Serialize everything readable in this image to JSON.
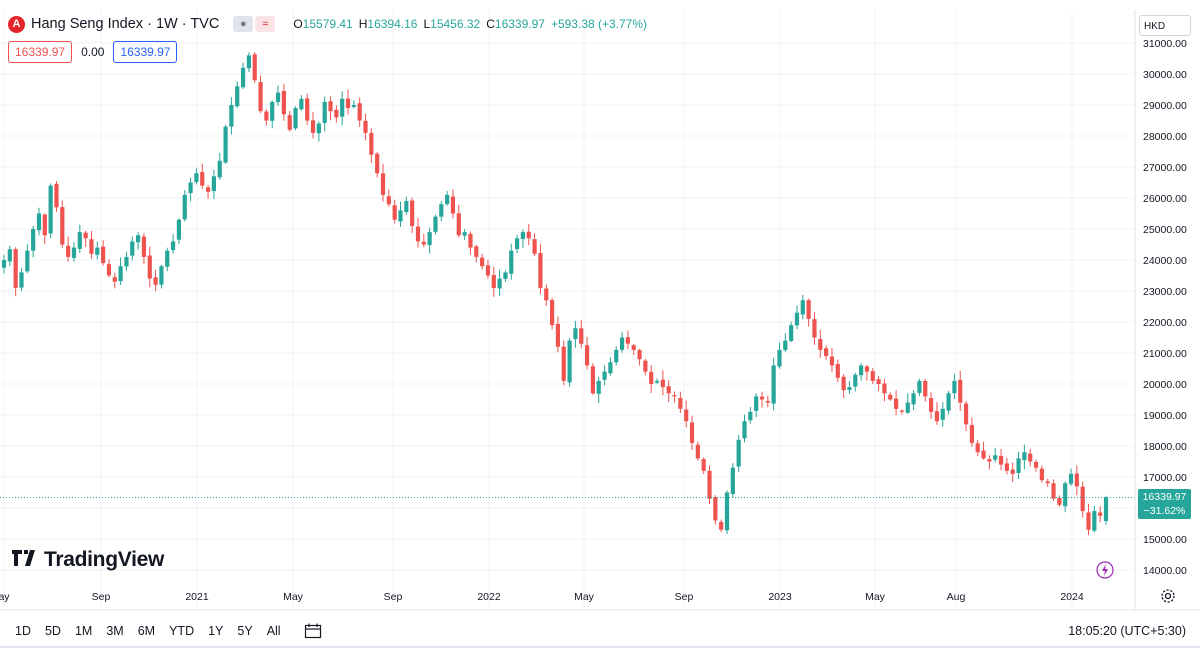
{
  "header": {
    "symbol_icon": "A",
    "title": "Hang Seng Index · 1W · TVC",
    "o_label": "O",
    "o_value": "15579.41",
    "h_label": "H",
    "h_value": "16394.16",
    "l_label": "L",
    "l_value": "15456.32",
    "c_label": "C",
    "c_value": "16339.97",
    "change": "+593.38 (+3.77%)"
  },
  "quote": {
    "bid": "16339.97",
    "spread": "0.00",
    "ask": "16339.97"
  },
  "currency": "HKD",
  "brand": "TradingView",
  "price_label": {
    "price": "16339.97",
    "change_pct": "−31.62%"
  },
  "bottom": {
    "ranges": [
      "1D",
      "5D",
      "1M",
      "3M",
      "6M",
      "YTD",
      "1Y",
      "5Y",
      "All"
    ],
    "clock": "18:05:20 (UTC+5:30)"
  },
  "colors": {
    "up": "#26a69a",
    "down": "#ef5350",
    "grid": "#f0f3fa",
    "text": "#131722"
  },
  "chart_data": {
    "type": "candlestick",
    "title": "Hang Seng Index · 1W · TVC",
    "ylabel": "HKD",
    "ylim": [
      13600,
      31100
    ],
    "y_ticks": [
      14000,
      15000,
      16000,
      17000,
      18000,
      19000,
      20000,
      21000,
      22000,
      23000,
      24000,
      25000,
      26000,
      27000,
      28000,
      29000,
      30000,
      31000
    ],
    "x_ticks": [
      "ay",
      "Sep",
      "2021",
      "May",
      "Sep",
      "2022",
      "May",
      "Sep",
      "2023",
      "May",
      "Aug",
      "2024"
    ],
    "last_price": 16339.97,
    "x_start": "2020-05",
    "x_end": "2024-02",
    "closes": [
      24000,
      24350,
      23100,
      23600,
      24300,
      25000,
      25500,
      24800,
      26400,
      25700,
      24500,
      24100,
      24400,
      24900,
      24700,
      24200,
      24400,
      23900,
      23500,
      23300,
      23800,
      24100,
      24600,
      24800,
      24100,
      23400,
      23200,
      23800,
      24300,
      24600,
      25300,
      26100,
      26500,
      26800,
      26400,
      26200,
      26700,
      27200,
      28300,
      29000,
      29600,
      30200,
      30600,
      29800,
      28800,
      28500,
      29100,
      29400,
      28700,
      28200,
      28900,
      29200,
      28500,
      28100,
      28400,
      29100,
      28800,
      28600,
      29200,
      28900,
      29000,
      28500,
      28100,
      27400,
      26800,
      26100,
      25800,
      25300,
      25600,
      25900,
      25100,
      24600,
      24500,
      24900,
      25400,
      25800,
      26100,
      25500,
      24800,
      24900,
      24400,
      24100,
      23800,
      23500,
      23100,
      23400,
      23600,
      24300,
      24700,
      24900,
      24700,
      24200,
      23100,
      22700,
      21900,
      21200,
      20100,
      21400,
      21800,
      21300,
      20600,
      19700,
      20100,
      20400,
      20700,
      21100,
      21500,
      21300,
      21100,
      20800,
      20400,
      20000,
      20100,
      19900,
      19700,
      19600,
      19200,
      18800,
      18100,
      17600,
      17200,
      16300,
      15600,
      15300,
      16500,
      17300,
      18200,
      18800,
      19100,
      19600,
      19500,
      19400,
      20600,
      21100,
      21400,
      21900,
      22300,
      22700,
      22100,
      21500,
      21100,
      20900,
      20600,
      20200,
      19800,
      19900,
      20300,
      20600,
      20400,
      20100,
      20000,
      19700,
      19500,
      19200,
      19100,
      19400,
      19700,
      20100,
      19600,
      19100,
      18800,
      19200,
      19700,
      20100,
      19400,
      18700,
      18100,
      17800,
      17600,
      17500,
      17700,
      17400,
      17200,
      17100,
      17600,
      17800,
      17500,
      17300,
      16900,
      16800,
      16300,
      16100,
      16800,
      17100,
      16700,
      15900,
      15300,
      15900,
      15746.59,
      16339.97
    ]
  }
}
